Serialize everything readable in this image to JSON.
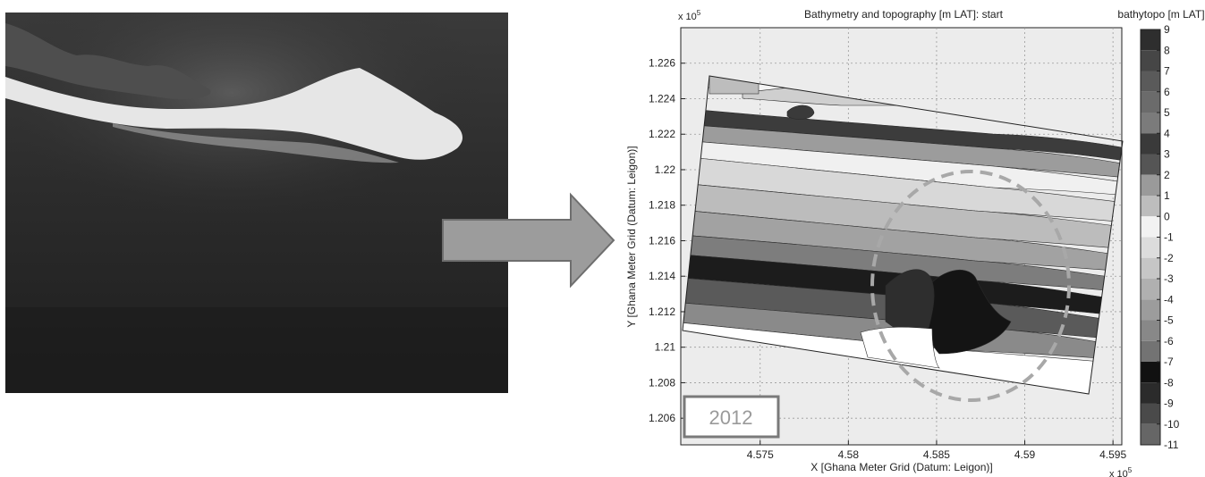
{
  "photo": {
    "description_icon": "aerial-sandspit-photo"
  },
  "arrow": {
    "fill": "#9c9c9c",
    "stroke": "#6e6e6e"
  },
  "chart_data": {
    "type": "heatmap",
    "title": "Bathymetry and topography [m LAT]: start",
    "xlabel": "X [Ghana Meter Grid (Datum: Leigon)]",
    "ylabel": "Y [Ghana Meter Grid (Datum: Leigon)]",
    "x_exponent_label": "x 10",
    "x_exponent_sup": "5",
    "y_exponent_label": "x 10",
    "y_exponent_sup": "5",
    "xlim": [
      4.5705,
      4.5955
    ],
    "ylim": [
      1.2045,
      1.228
    ],
    "x_ticks": [
      4.575,
      4.58,
      4.585,
      4.59,
      4.595
    ],
    "x_tick_labels": [
      "4.575",
      "4.58",
      "4.585",
      "4.59",
      "4.595"
    ],
    "y_ticks": [
      1.206,
      1.208,
      1.21,
      1.212,
      1.214,
      1.216,
      1.218,
      1.22,
      1.222,
      1.224,
      1.226
    ],
    "y_tick_labels": [
      "1.206",
      "1.208",
      "1.21",
      "1.212",
      "1.214",
      "1.216",
      "1.218",
      "1.22",
      "1.222",
      "1.224",
      "1.226"
    ],
    "grid": true,
    "colorbar": {
      "label": "bathytopo [m LAT]",
      "ticks": [
        "9",
        "8",
        "7",
        "6",
        "5",
        "4",
        "3",
        "2",
        "1",
        "0",
        "-1",
        "-2",
        "-3",
        "-4",
        "-5",
        "-6",
        "-7",
        "-8",
        "-9",
        "-10",
        "-11"
      ],
      "colors": [
        "#2e2e2e",
        "#464646",
        "#5a5a5a",
        "#6b6b6b",
        "#7b7b7b",
        "#3a3a3a",
        "#555555",
        "#9a9a9a",
        "#bdbdbd",
        "#f2f2f2",
        "#dcdcdc",
        "#c6c6c6",
        "#b0b0b0",
        "#9c9c9c",
        "#888888",
        "#737373",
        "#111111",
        "#2b2b2b",
        "#4a4a4a",
        "#666666"
      ]
    },
    "year_label": "2012"
  }
}
